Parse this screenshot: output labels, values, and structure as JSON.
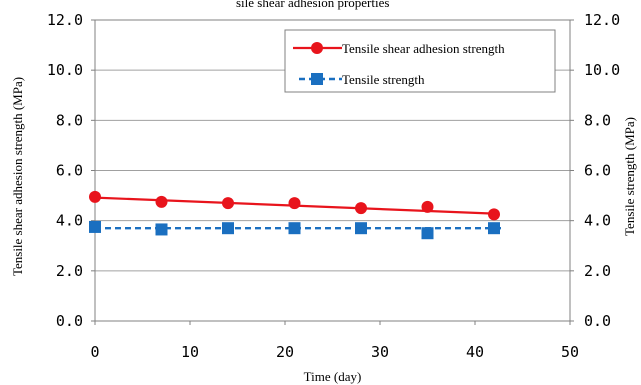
{
  "page": {
    "top_caption_fragment": "sile shear adhesion properties"
  },
  "chart_data": {
    "type": "line",
    "title": "",
    "xlabel": "Time (day)",
    "ylabel": "Tensile shear adhesion strength (MPa)",
    "y2label": "Tensile strength (MPa)",
    "xlim": [
      0,
      50
    ],
    "ylim": [
      0,
      12
    ],
    "y2lim": [
      0,
      12
    ],
    "x_ticks": [
      0,
      10,
      20,
      30,
      40,
      50
    ],
    "y_ticks": [
      "0.0",
      "2.0",
      "4.0",
      "6.0",
      "8.0",
      "10.0",
      "12.0"
    ],
    "y2_ticks": [
      "0.0",
      "2.0",
      "4.0",
      "6.0",
      "8.0",
      "10.0",
      "12.0"
    ],
    "grid": "horizontal",
    "legend_position": "top-right",
    "series": [
      {
        "name": "Tensile shear adhesion strength",
        "color": "#e8141c",
        "marker": "circle",
        "line_style": "solid",
        "x": [
          0,
          7,
          14,
          21,
          28,
          35,
          42
        ],
        "y": [
          4.95,
          4.75,
          4.7,
          4.7,
          4.5,
          4.55,
          4.25
        ],
        "trend": {
          "x": [
            0,
            42
          ],
          "y": [
            4.92,
            4.28
          ]
        }
      },
      {
        "name": "Tensile strength",
        "color": "#1a6fc0",
        "marker": "square",
        "line_style": "dashed",
        "x": [
          0,
          7,
          14,
          21,
          28,
          35,
          42
        ],
        "y": [
          3.75,
          3.65,
          3.7,
          3.7,
          3.7,
          3.5,
          3.7
        ],
        "trend": {
          "x": [
            0,
            43
          ],
          "y": [
            3.7,
            3.7
          ]
        }
      }
    ]
  }
}
